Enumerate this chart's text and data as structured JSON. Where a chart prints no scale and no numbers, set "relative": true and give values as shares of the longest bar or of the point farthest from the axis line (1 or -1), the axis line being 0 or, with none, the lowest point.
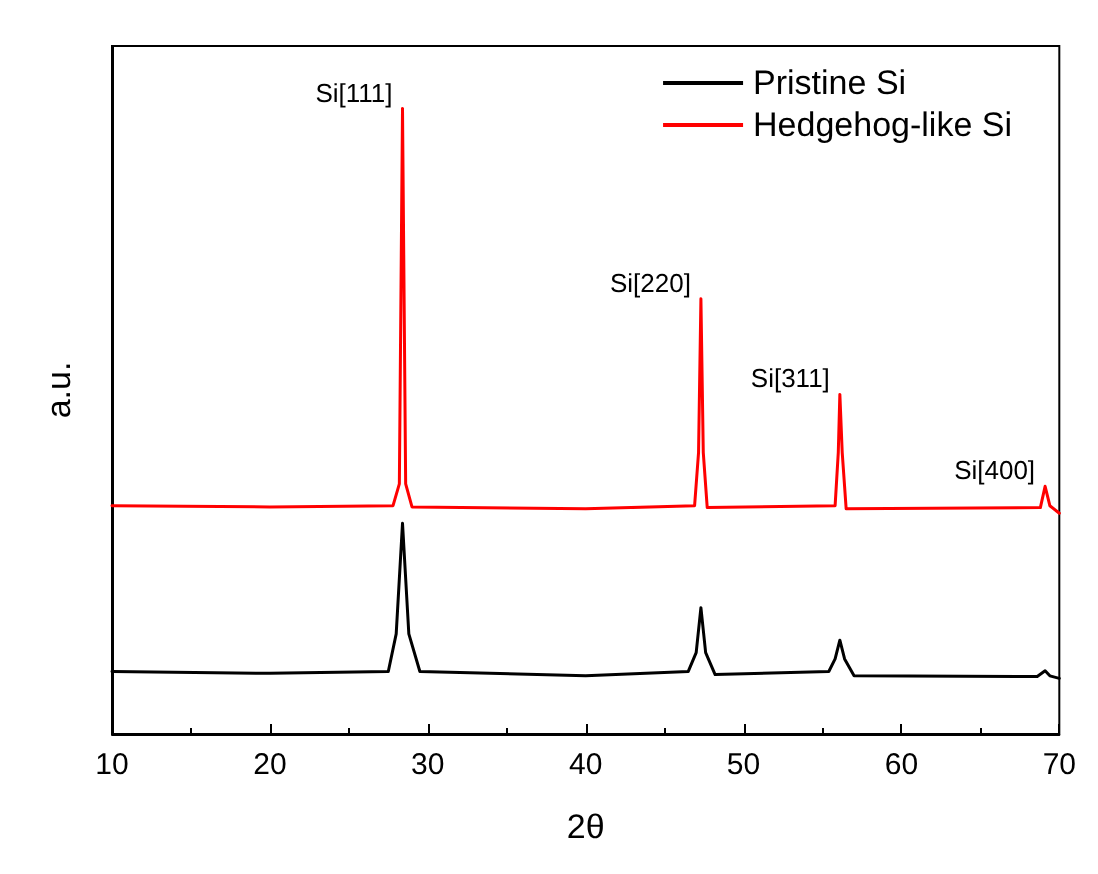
{
  "chart_data": {
    "type": "line",
    "relative": true,
    "xlabel": "2θ",
    "ylabel": "a.u.",
    "xlim": [
      10,
      70
    ],
    "xticks": [
      10,
      20,
      30,
      40,
      50,
      60,
      70
    ],
    "legend": "top right",
    "grid": false,
    "marker": "none",
    "line_style": "solid",
    "annotations": [
      {
        "text": "Si[111]",
        "x": 28.4,
        "y": 1
      },
      {
        "text": "Si[220]",
        "x": 47.3,
        "y": 0.696
      },
      {
        "text": "Si[311]",
        "x": 56.1,
        "y": 0.543
      },
      {
        "text": "Si[400]",
        "x": 69.1,
        "y": 0.396
      }
    ],
    "series": [
      {
        "name": "Pristine Si",
        "color": "#000000",
        "x": [
          10,
          20,
          27.5,
          28.0,
          28.4,
          28.8,
          29.5,
          40,
          46.5,
          47.0,
          47.3,
          47.6,
          48.2,
          55.4,
          55.8,
          56.1,
          56.4,
          57.0,
          68.6,
          69.1,
          69.4,
          70
        ],
        "values": [
          0.1,
          0.097,
          0.1,
          0.16,
          0.337,
          0.16,
          0.1,
          0.093,
          0.1,
          0.13,
          0.202,
          0.13,
          0.095,
          0.1,
          0.12,
          0.15,
          0.12,
          0.093,
          0.092,
          0.101,
          0.093,
          0.089
        ]
      },
      {
        "name": "Hedgehog-like Si",
        "color": "#ff0000",
        "x": [
          10,
          20,
          27.8,
          28.2,
          28.4,
          28.6,
          29.0,
          40,
          46.9,
          47.15,
          47.3,
          47.45,
          47.7,
          55.8,
          56.0,
          56.1,
          56.25,
          56.5,
          68.8,
          69.1,
          69.4,
          70
        ],
        "values": [
          0.365,
          0.363,
          0.365,
          0.4,
          1,
          0.4,
          0.363,
          0.36,
          0.365,
          0.45,
          0.696,
          0.45,
          0.362,
          0.365,
          0.45,
          0.543,
          0.45,
          0.36,
          0.362,
          0.396,
          0.365,
          0.353
        ]
      }
    ]
  }
}
